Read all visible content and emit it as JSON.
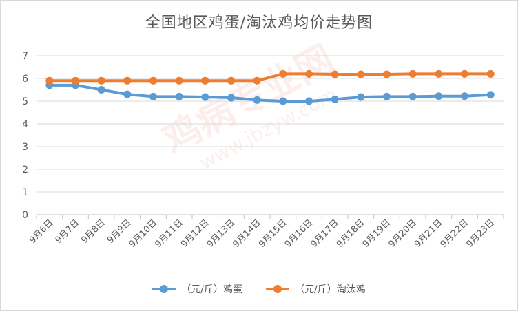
{
  "watermark": {
    "main": "鸡病专业网",
    "url": "www.jbzyw.com"
  },
  "chart_data": {
    "type": "line",
    "title": "全国地区鸡蛋/淘汰鸡均价走势图",
    "xlabel": "",
    "ylabel": "",
    "categories": [
      "9月6日",
      "9月7日",
      "9月8日",
      "9月9日",
      "9月10日",
      "9月11日",
      "9月12日",
      "9月13日",
      "9月14日",
      "9月15日",
      "9月16日",
      "9月17日",
      "9月18日",
      "9月19日",
      "9月20日",
      "9月21日",
      "9月22日",
      "9月23日"
    ],
    "ylim": [
      0,
      7
    ],
    "yticks": [
      0,
      1,
      2,
      3,
      4,
      5,
      6,
      7
    ],
    "grid": true,
    "legend_position": "bottom",
    "series": [
      {
        "name": "（元/斤）鸡蛋",
        "color": "#5b9bd5",
        "values": [
          5.7,
          5.7,
          5.5,
          5.3,
          5.2,
          5.2,
          5.18,
          5.15,
          5.05,
          5.0,
          5.0,
          5.08,
          5.18,
          5.2,
          5.2,
          5.22,
          5.22,
          5.28
        ]
      },
      {
        "name": "（元/斤）淘汰鸡",
        "color": "#ed7d31",
        "values": [
          5.9,
          5.9,
          5.9,
          5.9,
          5.9,
          5.9,
          5.9,
          5.9,
          5.9,
          6.2,
          6.2,
          6.18,
          6.18,
          6.18,
          6.2,
          6.2,
          6.2,
          6.2
        ]
      }
    ]
  }
}
